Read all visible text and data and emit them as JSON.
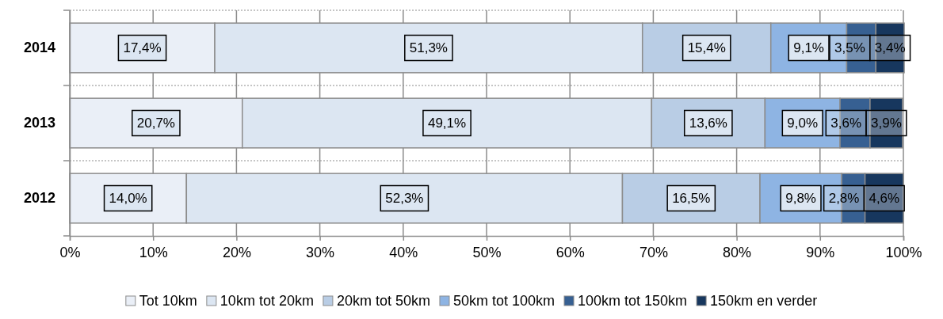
{
  "chart_data": {
    "type": "bar",
    "orientation": "horizontal",
    "stacked": true,
    "categories": [
      "2014",
      "2013",
      "2012"
    ],
    "series": [
      {
        "name": "Tot 10km",
        "color": "#eaeff7",
        "values": [
          17.4,
          20.7,
          14.0
        ],
        "value_labels": [
          "17,4%",
          "20,7%",
          "14,0%"
        ]
      },
      {
        "name": "10km tot 20km",
        "color": "#dce6f2",
        "values": [
          51.3,
          49.1,
          52.3
        ],
        "value_labels": [
          "51,3%",
          "49,1%",
          "52,3%"
        ]
      },
      {
        "name": "20km tot 50km",
        "color": "#b9cde5",
        "values": [
          15.4,
          13.6,
          16.5
        ],
        "value_labels": [
          "15,4%",
          "13,6%",
          "16,5%"
        ]
      },
      {
        "name": "50km tot 100km",
        "color": "#8eb4e3",
        "values": [
          9.1,
          9.0,
          9.8
        ],
        "value_labels": [
          "9,1%",
          "9,0%",
          "9,8%"
        ]
      },
      {
        "name": "100km tot 150km",
        "color": "#376092",
        "values": [
          3.5,
          3.6,
          2.8
        ],
        "value_labels": [
          "3,5%",
          "3,6%",
          "2,8%"
        ]
      },
      {
        "name": "150km en verder",
        "color": "#17375e",
        "values": [
          3.4,
          3.9,
          4.6
        ],
        "value_labels": [
          "3,4%",
          "3,9%",
          "4,6%"
        ]
      }
    ],
    "xlim": [
      0,
      100
    ],
    "xticks": [
      {
        "value": 0,
        "label": "0%"
      },
      {
        "value": 10,
        "label": "10%"
      },
      {
        "value": 20,
        "label": "20%"
      },
      {
        "value": 30,
        "label": "30%"
      },
      {
        "value": 40,
        "label": "40%"
      },
      {
        "value": 50,
        "label": "50%"
      },
      {
        "value": 60,
        "label": "60%"
      },
      {
        "value": 70,
        "label": "70%"
      },
      {
        "value": 80,
        "label": "80%"
      },
      {
        "value": 90,
        "label": "90%"
      },
      {
        "value": 100,
        "label": "100%"
      }
    ],
    "grid": true,
    "legend": "bottom"
  }
}
